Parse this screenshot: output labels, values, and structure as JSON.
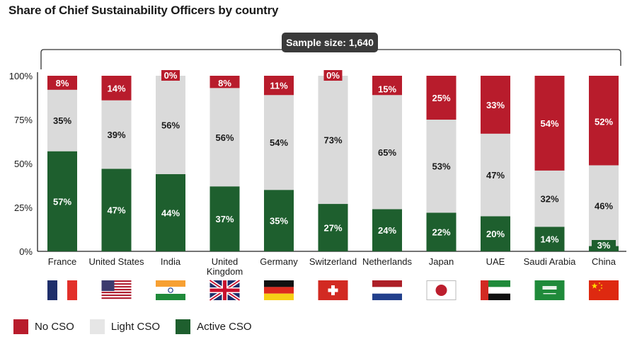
{
  "chart_data": {
    "type": "bar",
    "stacked": true,
    "title": "Share of Chief Sustainability Officers by country",
    "annotation": "Sample size: 1,640",
    "xlabel": "",
    "ylabel": "",
    "ylim": [
      0,
      100
    ],
    "yticks": [
      "0%",
      "25%",
      "50%",
      "75%",
      "100%"
    ],
    "ytick_values": [
      0,
      25,
      50,
      75,
      100
    ],
    "grid": false,
    "legend_position": "bottom-left",
    "categories": [
      "France",
      "United States",
      "India",
      "United Kingdom",
      "Germany",
      "Switzerland",
      "Netherlands",
      "Japan",
      "UAE",
      "Saudi Arabia",
      "China"
    ],
    "category_labels": [
      [
        "France"
      ],
      [
        "United States"
      ],
      [
        "India"
      ],
      [
        "United",
        "Kingdom"
      ],
      [
        "Germany"
      ],
      [
        "Switzerland"
      ],
      [
        "Netherlands"
      ],
      [
        "Japan"
      ],
      [
        "UAE"
      ],
      [
        "Saudi Arabia"
      ],
      [
        "China"
      ]
    ],
    "flags": [
      "flag-france-icon",
      "flag-usa-icon",
      "flag-india-icon",
      "flag-uk-icon",
      "flag-germany-icon",
      "flag-switzerland-icon",
      "flag-netherlands-icon",
      "flag-japan-icon",
      "flag-uae-icon",
      "flag-saudi-arabia-icon",
      "flag-china-icon"
    ],
    "series": [
      {
        "name": "Active CSO",
        "color": "#1e5f2e",
        "values": [
          57,
          47,
          44,
          37,
          35,
          27,
          24,
          22,
          20,
          14,
          3
        ]
      },
      {
        "name": "Light CSO",
        "color": "#dadada",
        "values": [
          35,
          39,
          56,
          56,
          54,
          73,
          65,
          53,
          47,
          32,
          46
        ]
      },
      {
        "name": "No CSO",
        "color": "#b81c2c",
        "values": [
          8,
          14,
          0,
          8,
          11,
          0,
          15,
          25,
          33,
          54,
          52
        ]
      }
    ]
  },
  "legend": [
    {
      "label": "No CSO",
      "color": "#b81c2c"
    },
    {
      "label": "Light CSO",
      "color": "#e6e6e6"
    },
    {
      "label": "Active CSO",
      "color": "#1e5f2e"
    }
  ]
}
